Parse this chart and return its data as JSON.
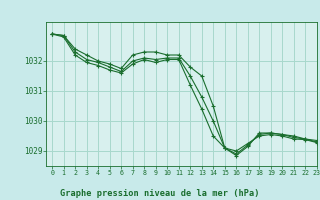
{
  "title": "Graphe pression niveau de la mer (hPa)",
  "bg_color": "#c8eaea",
  "plot_bg_color": "#d8f0ee",
  "grid_color": "#a8d8cc",
  "line_color": "#1a6e2e",
  "xlim": [
    -0.5,
    23
  ],
  "ylim": [
    1028.5,
    1033.3
  ],
  "yticks": [
    1029,
    1030,
    1031,
    1032
  ],
  "xticks": [
    0,
    1,
    2,
    3,
    4,
    5,
    6,
    7,
    8,
    9,
    10,
    11,
    12,
    13,
    14,
    15,
    16,
    17,
    18,
    19,
    20,
    21,
    22,
    23
  ],
  "series": [
    {
      "x": [
        0,
        1,
        2,
        3,
        4,
        5,
        6,
        7,
        8,
        9,
        10,
        11,
        12,
        13,
        14,
        15,
        16,
        17,
        18,
        19,
        20,
        21,
        22,
        23
      ],
      "y": [
        1032.9,
        1032.85,
        1032.4,
        1032.2,
        1032.0,
        1031.9,
        1031.75,
        1032.2,
        1032.3,
        1032.3,
        1032.2,
        1032.2,
        1031.8,
        1031.5,
        1030.5,
        1029.1,
        1028.85,
        1029.15,
        1029.6,
        1029.6,
        1029.55,
        1029.5,
        1029.4,
        1029.35
      ]
    },
    {
      "x": [
        0,
        1,
        2,
        3,
        4,
        5,
        6,
        7,
        8,
        9,
        10,
        11,
        12,
        13,
        14,
        15,
        16,
        17,
        18,
        19,
        20,
        21,
        22,
        23
      ],
      "y": [
        1032.9,
        1032.85,
        1032.3,
        1032.05,
        1031.95,
        1031.8,
        1031.65,
        1032.0,
        1032.1,
        1032.05,
        1032.1,
        1032.1,
        1031.5,
        1030.8,
        1030.0,
        1029.1,
        1028.9,
        1029.2,
        1029.55,
        1029.6,
        1029.55,
        1029.45,
        1029.4,
        1029.3
      ]
    },
    {
      "x": [
        0,
        1,
        2,
        3,
        4,
        5,
        6,
        7,
        8,
        9,
        10,
        11,
        12,
        13,
        14,
        15,
        16,
        17,
        18,
        19,
        20,
        21,
        22,
        23
      ],
      "y": [
        1032.9,
        1032.8,
        1032.2,
        1031.95,
        1031.85,
        1031.7,
        1031.6,
        1031.9,
        1032.05,
        1031.95,
        1032.05,
        1032.05,
        1031.2,
        1030.4,
        1029.5,
        1029.1,
        1029.0,
        1029.25,
        1029.5,
        1029.55,
        1029.5,
        1029.4,
        1029.38,
        1029.28
      ]
    }
  ]
}
